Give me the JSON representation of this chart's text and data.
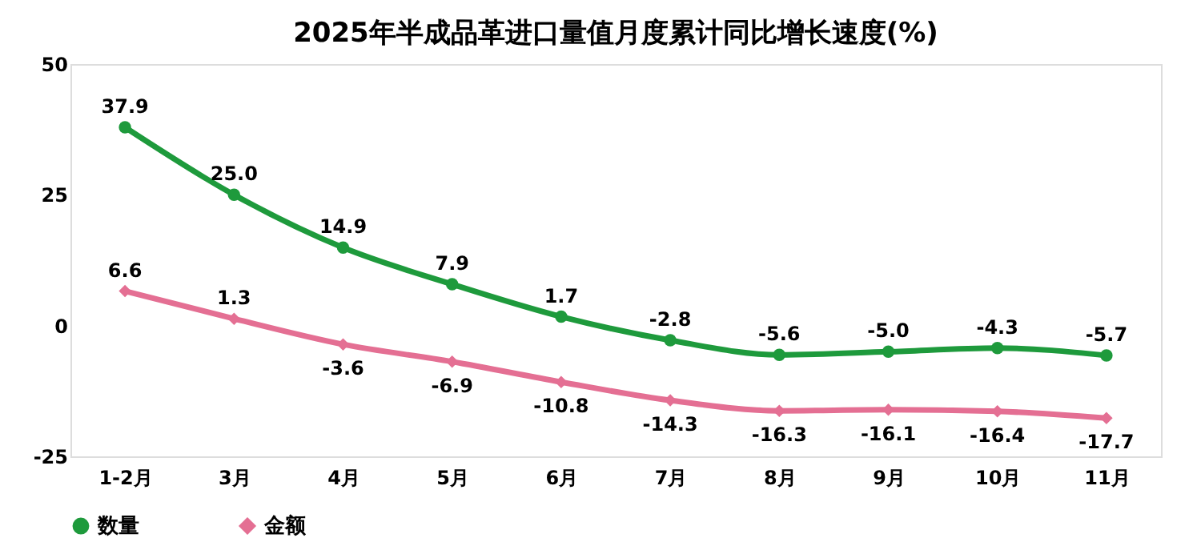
{
  "chart_data": {
    "type": "line",
    "title": "2025年半成品革进口量值月度累计同比增长速度(%)",
    "categories": [
      "1-2月",
      "3月",
      "4月",
      "5月",
      "6月",
      "7月",
      "8月",
      "9月",
      "10月",
      "11月"
    ],
    "series": [
      {
        "name": "数量",
        "color": "#1e9a3c",
        "marker": "circle",
        "values": [
          37.9,
          25.0,
          14.9,
          7.9,
          1.7,
          -2.8,
          -5.6,
          -5.0,
          -4.3,
          -5.7
        ],
        "value_labels": [
          "37.9",
          "25.0",
          "14.9",
          "7.9",
          "1.7",
          "-2.8",
          "-5.6",
          "-5.0",
          "-4.3",
          "-5.7"
        ]
      },
      {
        "name": "金额",
        "color": "#e46f93",
        "marker": "diamond",
        "values": [
          6.6,
          1.3,
          -3.6,
          -6.9,
          -10.8,
          -14.3,
          -16.3,
          -16.1,
          -16.4,
          -17.7
        ],
        "value_labels": [
          "6.6",
          "1.3",
          "-3.6",
          "-6.9",
          "-10.8",
          "-14.3",
          "-16.3",
          "-16.1",
          "-16.4",
          "-17.7"
        ]
      }
    ],
    "ylim": [
      -25,
      50
    ],
    "yticks": [
      -25,
      0,
      25,
      50
    ],
    "grid": false,
    "legend": "bottom",
    "data_labels": true,
    "line_style": "solid"
  }
}
